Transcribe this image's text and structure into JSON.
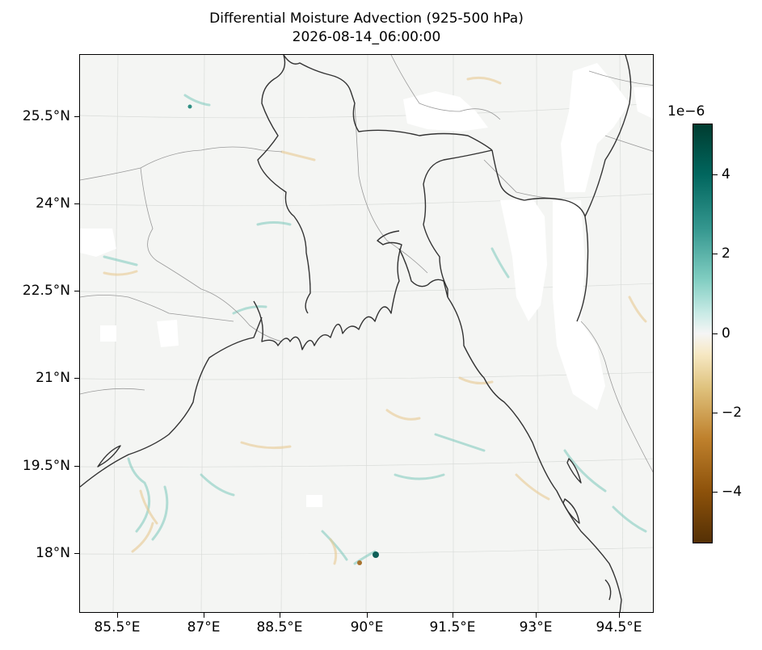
{
  "title": "Differential Moisture Advection (925-500 hPa)",
  "timestamp": "2026-08-14_06:00:00",
  "lat_labels": [
    "25.5°N",
    "24°N",
    "22.5°N",
    "21°N",
    "19.5°N",
    "18°N"
  ],
  "lon_labels": [
    "85.5°E",
    "87°E",
    "88.5°E",
    "90°E",
    "91.5°E",
    "93°E",
    "94.5°E"
  ],
  "colorbar": {
    "exponent_label": "1e−6",
    "tick_labels": [
      "4",
      "2",
      "0",
      "−2",
      "−4"
    ],
    "colormap": "BrBG",
    "range": [
      -5.2,
      5.2
    ]
  },
  "colors": {
    "coastline": "#333333",
    "borders": "#9a9a9a",
    "background_field": "#f4f5f3"
  }
}
